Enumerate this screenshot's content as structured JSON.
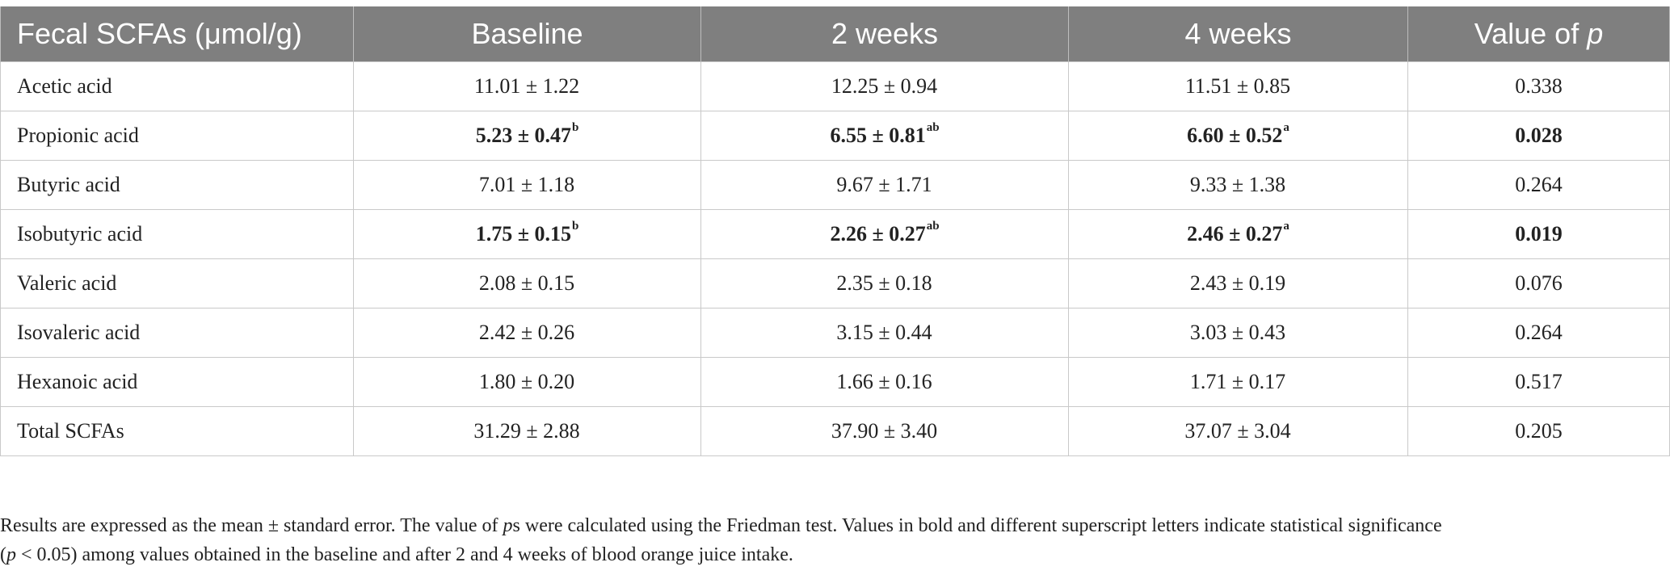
{
  "table": {
    "headers": {
      "col0": "Fecal SCFAs (μmol/g)",
      "col1": "Baseline",
      "col2": "2 weeks",
      "col3": "4 weeks",
      "col4_prefix": "Value of ",
      "col4_italic": "p"
    },
    "rows": [
      {
        "name": "Acetic acid",
        "baseline": "11.01 ± 1.22",
        "baseline_sup": "",
        "w2": "12.25 ± 0.94",
        "w2_sup": "",
        "w4": "11.51 ± 0.85",
        "w4_sup": "",
        "p": "0.338",
        "bold": false
      },
      {
        "name": "Propionic acid",
        "baseline": "5.23 ± 0.47",
        "baseline_sup": "b",
        "w2": "6.55 ± 0.81",
        "w2_sup": "ab",
        "w4": "6.60 ± 0.52",
        "w4_sup": "a",
        "p": "0.028",
        "bold": true
      },
      {
        "name": "Butyric acid",
        "baseline": "7.01 ± 1.18",
        "baseline_sup": "",
        "w2": "9.67 ± 1.71",
        "w2_sup": "",
        "w4": "9.33 ± 1.38",
        "w4_sup": "",
        "p": "0.264",
        "bold": false
      },
      {
        "name": "Isobutyric acid",
        "baseline": "1.75 ± 0.15",
        "baseline_sup": "b",
        "w2": "2.26 ± 0.27",
        "w2_sup": "ab",
        "w4": "2.46 ± 0.27",
        "w4_sup": "a",
        "p": "0.019",
        "bold": true
      },
      {
        "name": "Valeric acid",
        "baseline": "2.08 ± 0.15",
        "baseline_sup": "",
        "w2": "2.35 ± 0.18",
        "w2_sup": "",
        "w4": "2.43 ± 0.19",
        "w4_sup": "",
        "p": "0.076",
        "bold": false
      },
      {
        "name": "Isovaleric acid",
        "baseline": "2.42 ± 0.26",
        "baseline_sup": "",
        "w2": "3.15 ± 0.44",
        "w2_sup": "",
        "w4": "3.03 ± 0.43",
        "w4_sup": "",
        "p": "0.264",
        "bold": false
      },
      {
        "name": "Hexanoic acid",
        "baseline": "1.80 ± 0.20",
        "baseline_sup": "",
        "w2": "1.66 ± 0.16",
        "w2_sup": "",
        "w4": "1.71 ± 0.17",
        "w4_sup": "",
        "p": "0.517",
        "bold": false
      },
      {
        "name": "Total SCFAs",
        "baseline": "31.29 ± 2.88",
        "baseline_sup": "",
        "w2": "37.90 ± 3.40",
        "w2_sup": "",
        "w4": "37.07 ± 3.04",
        "w4_sup": "",
        "p": "0.205",
        "bold": false
      }
    ]
  },
  "footnote": {
    "line1_a": "Results are expressed as the mean ± standard error. The value of ",
    "line1_b": "p",
    "line1_c": "s were calculated using the Friedman test. Values in bold and different superscript letters indicate statistical significance",
    "line2_a": "(",
    "line2_b": "p",
    "line2_c": " < 0.05) among values obtained in the baseline and after 2 and 4 weeks of blood orange juice intake."
  }
}
